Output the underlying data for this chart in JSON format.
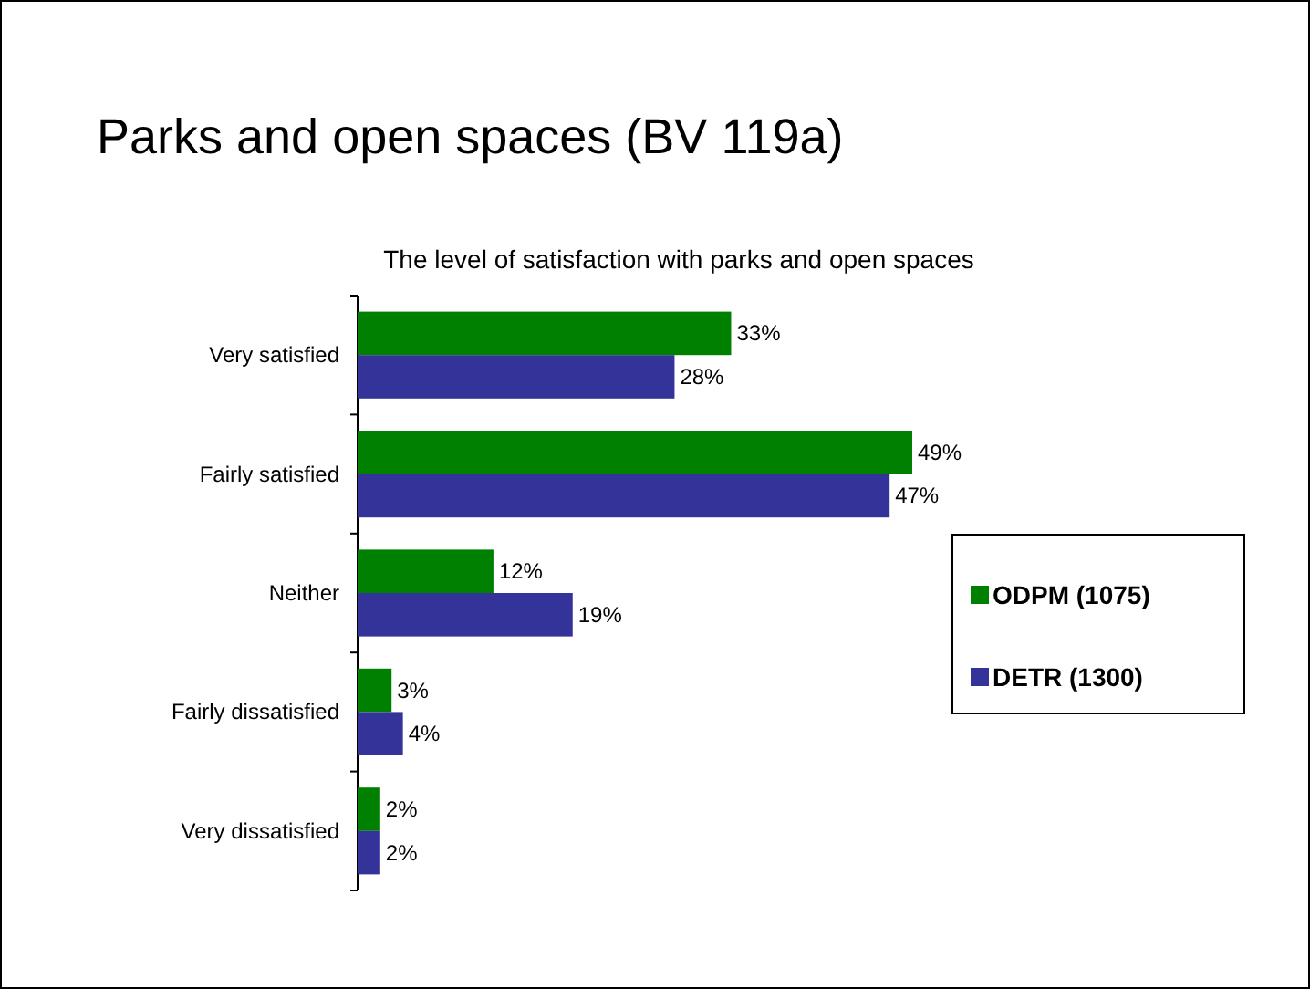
{
  "chart_data": {
    "type": "bar",
    "orientation": "horizontal",
    "title": "Parks and open spaces (BV 119a)",
    "subtitle": "The level of satisfaction with parks and open spaces",
    "categories": [
      "Very  satisfied",
      "Fairly satisfied",
      "Neither",
      "Fairly dissatisfied",
      "Very dissatisfied"
    ],
    "series": [
      {
        "name": "ODPM (1075)",
        "color": "#008000",
        "values": [
          33,
          49,
          12,
          3,
          2
        ],
        "value_labels": [
          "33%",
          "49%",
          "12%",
          "3%",
          "2%"
        ]
      },
      {
        "name": "DETR (1300)",
        "color": "#333399",
        "values": [
          28,
          47,
          19,
          4,
          2
        ],
        "value_labels": [
          "28%",
          "47%",
          "19%",
          "4%",
          "2%"
        ]
      }
    ],
    "legend": "right"
  }
}
